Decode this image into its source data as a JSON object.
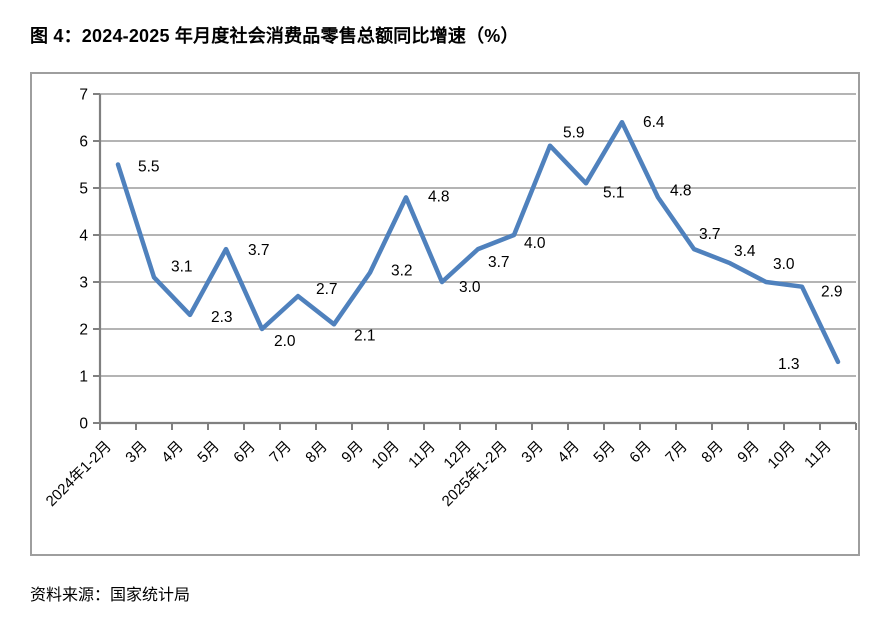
{
  "title": "图 4：2024-2025 年月度社会消费品零售总额同比增速（%）",
  "source": "资料来源：国家统计局",
  "chart_data": {
    "type": "line",
    "title": "2024-2025 年月度社会消费品零售总额同比增速（%）",
    "categories": [
      "2024年1-2月",
      "3月",
      "4月",
      "5月",
      "6月",
      "7月",
      "8月",
      "9月",
      "10月",
      "11月",
      "12月",
      "2025年1-2月",
      "3月",
      "4月",
      "5月",
      "6月",
      "7月",
      "8月",
      "9月",
      "10月",
      "11月"
    ],
    "values": [
      5.5,
      3.1,
      2.3,
      3.7,
      2.0,
      2.7,
      2.1,
      3.2,
      4.8,
      3.0,
      3.7,
      4.0,
      5.9,
      5.1,
      6.4,
      4.8,
      3.7,
      3.4,
      3.0,
      2.9,
      1.3
    ],
    "data_labels": [
      "5.5",
      "3.1",
      "2.3",
      "3.7",
      "2.0",
      "2.7",
      "2.1",
      "3.2",
      "4.8",
      "3.0",
      "3.7",
      "4.0",
      "5.9",
      "5.1",
      "6.4",
      "4.8",
      "3.7",
      "3.4",
      "3.0",
      "2.9",
      "1.3"
    ],
    "xlabel": "",
    "ylabel": "",
    "ylim": [
      0,
      7
    ],
    "yticks": [
      0,
      1,
      2,
      3,
      4,
      5,
      6,
      7
    ],
    "grid": true,
    "legend": "none",
    "line_color": "#4f81bd",
    "grid_color": "#9b9b9b",
    "axis_color": "#808080"
  }
}
